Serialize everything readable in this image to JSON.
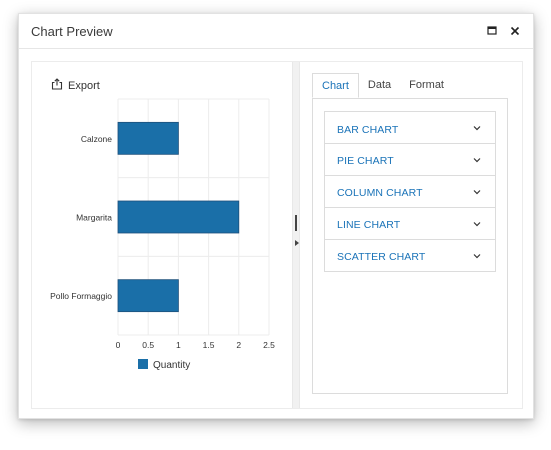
{
  "window": {
    "title": "Chart Preview"
  },
  "toolbar": {
    "export_label": "Export"
  },
  "tabs": [
    {
      "label": "Chart",
      "active": true
    },
    {
      "label": "Data",
      "active": false
    },
    {
      "label": "Format",
      "active": false
    }
  ],
  "accordion": [
    {
      "label": "BAR CHART"
    },
    {
      "label": "PIE CHART"
    },
    {
      "label": "COLUMN CHART"
    },
    {
      "label": "LINE CHART"
    },
    {
      "label": "SCATTER CHART"
    }
  ],
  "chart_data": {
    "type": "bar",
    "orientation": "horizontal",
    "categories": [
      "Calzone",
      "Margarita",
      "Pollo Formaggio"
    ],
    "series": [
      {
        "name": "Quantity",
        "values": [
          1,
          2,
          1
        ],
        "color": "#1a6fa8"
      }
    ],
    "xlim": [
      0,
      2.5
    ],
    "x_ticks": [
      "0",
      "0.5",
      "1",
      "1.5",
      "2",
      "2.5"
    ],
    "grid": true,
    "legend": "bottom"
  },
  "colors": {
    "accent": "#1a73b8",
    "bar": "#1a6fa8"
  }
}
